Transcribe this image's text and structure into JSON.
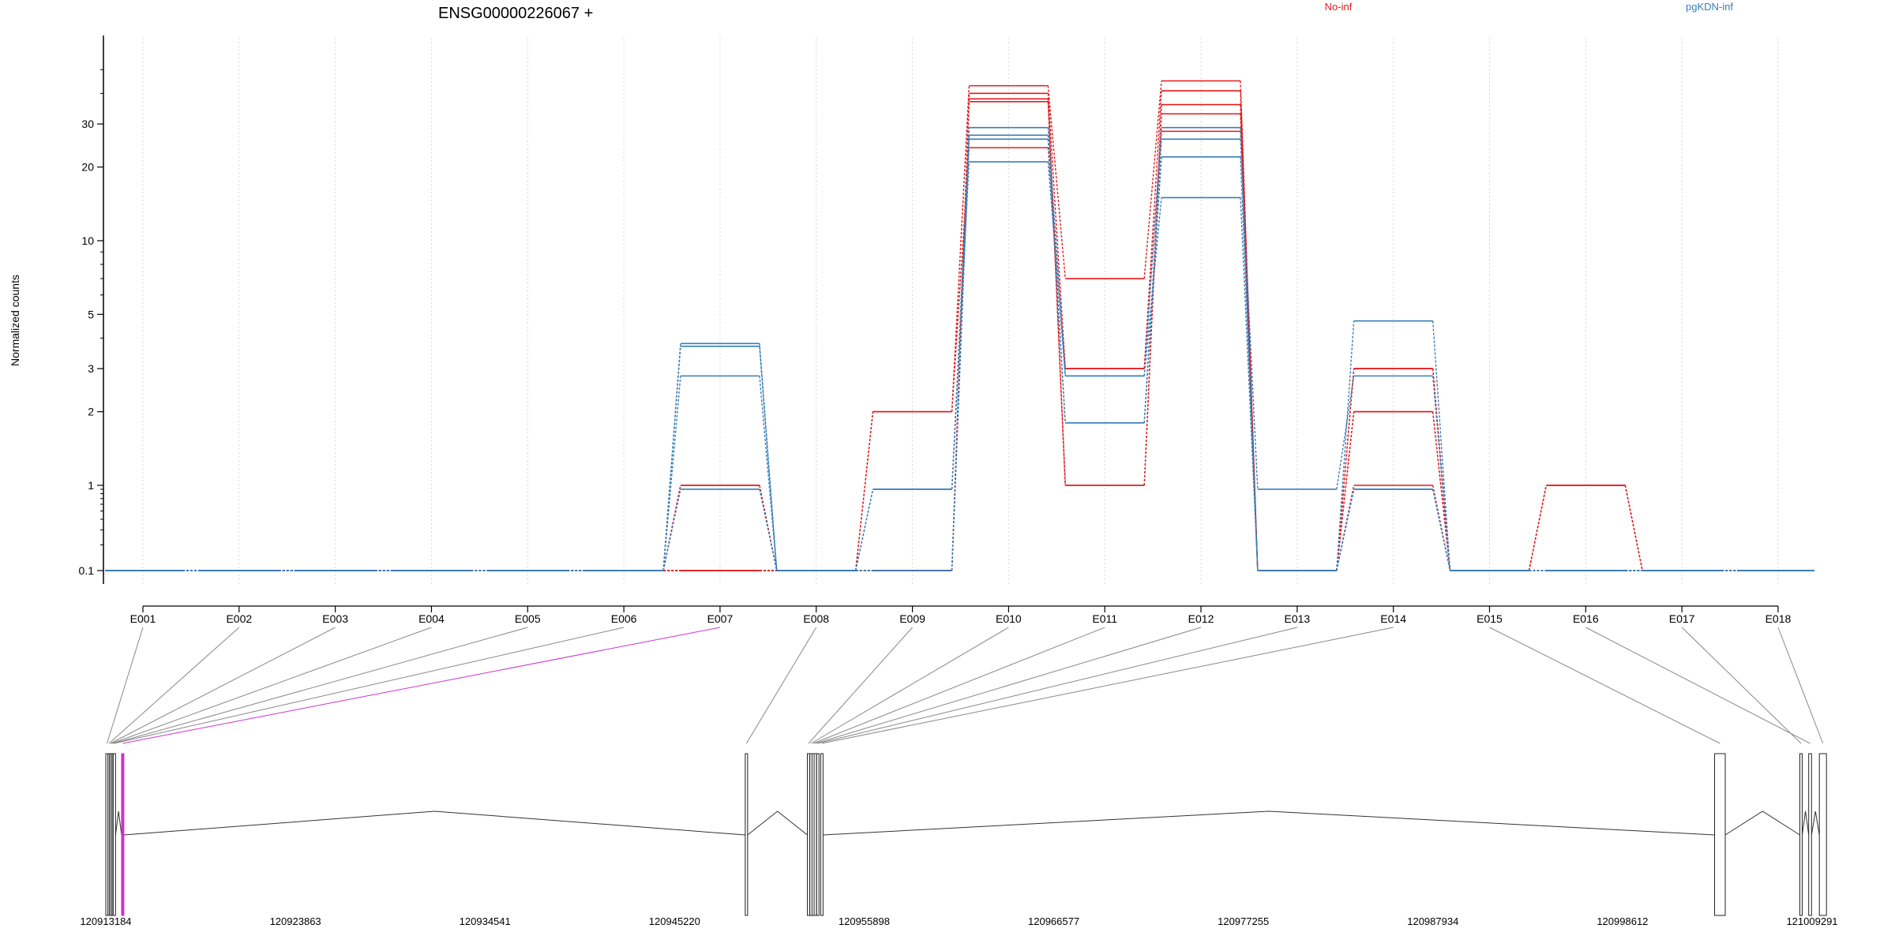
{
  "chart_data": {
    "type": "line",
    "title": "ENSG00000226067 +",
    "xlabel": "",
    "ylabel": "Normalized counts",
    "y_scale": "log",
    "yticks": [
      "0.1",
      "1",
      "2",
      "3",
      "5",
      "10",
      "20",
      "30"
    ],
    "ytick_values": [
      0.1,
      1,
      2,
      3,
      5,
      10,
      20,
      30
    ],
    "grid": "vertical dotted lines at exons",
    "legend": [
      {
        "label": "No-inf",
        "color": "#e41a1c"
      },
      {
        "label": "pgKDN-inf",
        "color": "#377eb8"
      }
    ],
    "categories": [
      "E001",
      "E002",
      "E003",
      "E004",
      "E005",
      "E006",
      "E007",
      "E008",
      "E009",
      "E010",
      "E011",
      "E012",
      "E013",
      "E014",
      "E015",
      "E016",
      "E017",
      "E018"
    ],
    "highlighted_exon": "E007",
    "highlight_color": "#cc33cc",
    "series": [
      {
        "group": "No-inf",
        "values": [
          0.1,
          0.1,
          0.1,
          0.1,
          0.1,
          0.1,
          1.0,
          0.1,
          2.0,
          43,
          7.0,
          45,
          0.1,
          3.0,
          0.1,
          1.0,
          0.1,
          0.1
        ]
      },
      {
        "group": "No-inf",
        "values": [
          0.1,
          0.1,
          0.1,
          0.1,
          0.1,
          0.1,
          0.1,
          0.1,
          0.1,
          40,
          3.0,
          41,
          0.1,
          2.0,
          0.1,
          1.0,
          0.1,
          0.1
        ]
      },
      {
        "group": "No-inf",
        "values": [
          0.1,
          0.1,
          0.1,
          0.1,
          0.1,
          0.1,
          1.0,
          0.1,
          0.1,
          38,
          1.0,
          36,
          0.1,
          3.0,
          0.1,
          0.1,
          0.1,
          0.1
        ]
      },
      {
        "group": "No-inf",
        "values": [
          0.1,
          0.1,
          0.1,
          0.1,
          0.1,
          0.1,
          0.1,
          0.1,
          0.1,
          37,
          1.0,
          33,
          0.1,
          2.0,
          0.1,
          1.0,
          0.1,
          0.1
        ]
      },
      {
        "group": "No-inf",
        "values": [
          0.1,
          0.1,
          0.1,
          0.1,
          0.1,
          0.1,
          0.1,
          0.1,
          2.0,
          24,
          3.0,
          28,
          0.1,
          1.0,
          0.1,
          0.1,
          0.1,
          0.1
        ]
      },
      {
        "group": "pgKDN-inf",
        "values": [
          0.1,
          0.1,
          0.1,
          0.1,
          0.1,
          0.1,
          3.8,
          0.1,
          0.1,
          29,
          2.8,
          29,
          0.1,
          4.7,
          0.1,
          0.1,
          0.1,
          0.1
        ]
      },
      {
        "group": "pgKDN-inf",
        "values": [
          0.1,
          0.1,
          0.1,
          0.1,
          0.1,
          0.1,
          3.7,
          0.1,
          0.9,
          27,
          1.8,
          26,
          0.9,
          2.8,
          0.1,
          0.1,
          0.1,
          0.1
        ]
      },
      {
        "group": "pgKDN-inf",
        "values": [
          0.1,
          0.1,
          0.1,
          0.1,
          0.1,
          0.1,
          2.8,
          0.1,
          0.1,
          26,
          1.8,
          22,
          0.1,
          0.9,
          0.1,
          0.1,
          0.1,
          0.1
        ]
      },
      {
        "group": "pgKDN-inf",
        "values": [
          0.1,
          0.1,
          0.1,
          0.1,
          0.1,
          0.1,
          0.9,
          0.1,
          0.9,
          21,
          2.8,
          15,
          0.1,
          0.9,
          0.1,
          0.1,
          0.1,
          0.1
        ]
      }
    ],
    "genomic_axis_ticks": [
      "120913184",
      "120923863",
      "120934541",
      "120945220",
      "120955898",
      "120966577",
      "120977255",
      "120987934",
      "120998612",
      "121009291"
    ],
    "genomic_axis_values": [
      120913184,
      120923863,
      120934541,
      120945220,
      120955898,
      120966577,
      120977255,
      120987934,
      120998612,
      121009291
    ],
    "exon_coordinates": [
      [
        120913184,
        120913260
      ],
      [
        120913300,
        120913340
      ],
      [
        120913380,
        120913420
      ],
      [
        120913460,
        120913500
      ],
      [
        120913540,
        120913580
      ],
      [
        120913600,
        120913640
      ],
      [
        120914070,
        120914190
      ],
      [
        120949200,
        120949280
      ],
      [
        120952700,
        120952800
      ],
      [
        120952840,
        120952920
      ],
      [
        120952960,
        120953040
      ],
      [
        120953080,
        120953160
      ],
      [
        120953220,
        120953300
      ],
      [
        120953450,
        120953560
      ],
      [
        121003800,
        121004400
      ],
      [
        121009100,
        121009260
      ],
      [
        121008600,
        121008700
      ],
      [
        121009700,
        121010100
      ]
    ]
  }
}
